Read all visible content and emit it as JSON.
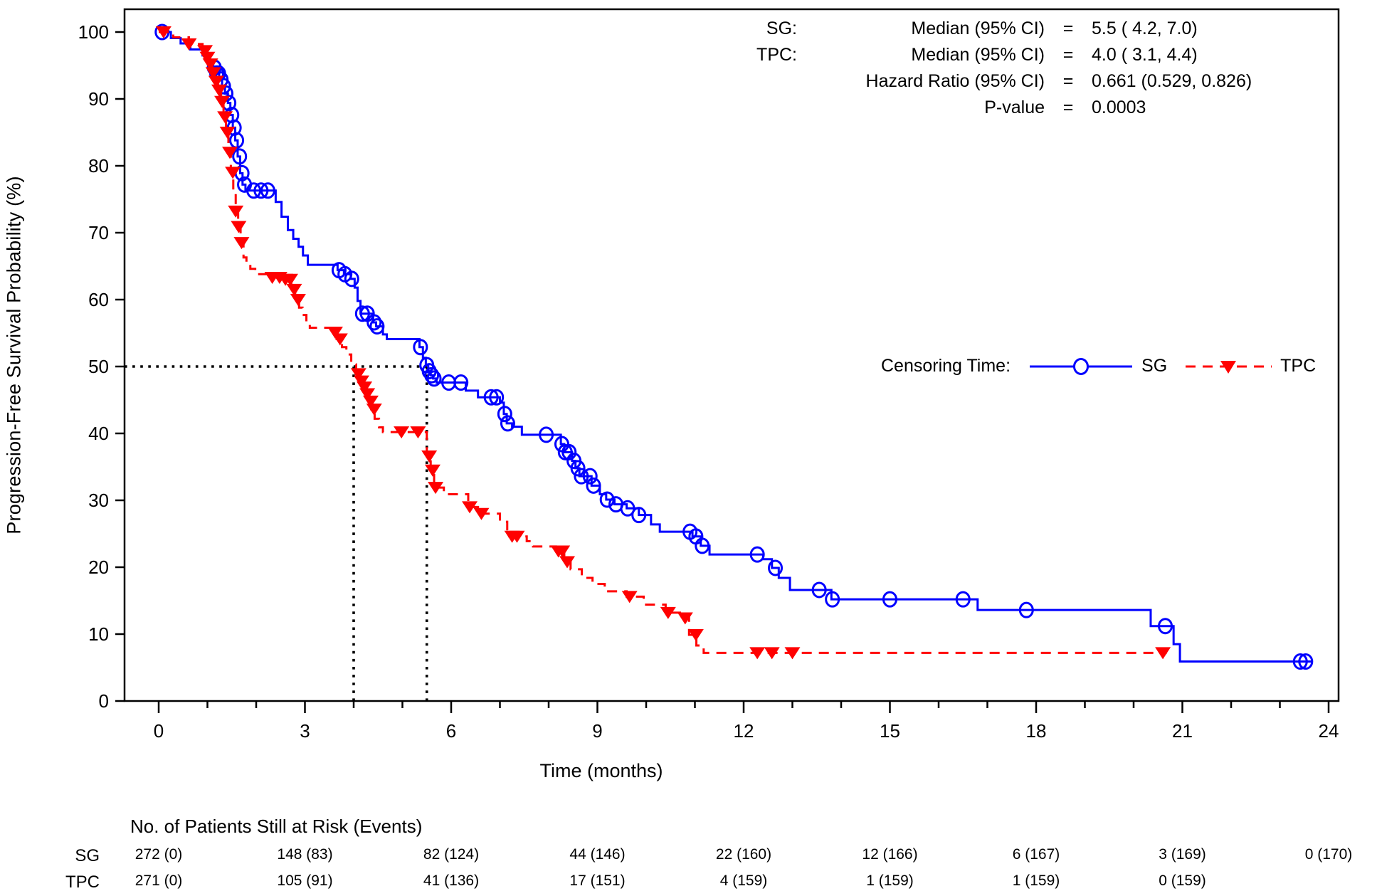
{
  "stats_panel": {
    "rows": [
      {
        "group": "SG:",
        "label": "Median (95% CI)",
        "eq": "=",
        "value": "5.5 ( 4.2, 7.0)"
      },
      {
        "group": "TPC:",
        "label": "Median (95% CI)",
        "eq": "=",
        "value": "4.0 ( 3.1, 4.4)"
      },
      {
        "group": "",
        "label": "Hazard Ratio (95% CI)",
        "eq": "=",
        "value": "0.661 (0.529, 0.826)"
      },
      {
        "group": "",
        "label": "P-value",
        "eq": "=",
        "value": "0.0003"
      }
    ]
  },
  "legend": {
    "title": "Censoring Time:",
    "sg_label": "SG",
    "tpc_label": "TPC"
  },
  "chart_data": {
    "type": "line",
    "subtype": "kaplan-meier-step",
    "title": "",
    "xlabel": "Time (months)",
    "ylabel": "Progression-Free Survival Probability (%)",
    "xlim": [
      0,
      24
    ],
    "ylim": [
      0,
      100
    ],
    "xticks": [
      0,
      3,
      6,
      9,
      12,
      15,
      18,
      21,
      24
    ],
    "yticks": [
      0,
      10,
      20,
      30,
      40,
      50,
      60,
      70,
      80,
      90,
      100
    ],
    "grid": false,
    "legend_position": "right-middle",
    "reference_lines": {
      "y": 50,
      "x_medians": [
        4.0,
        5.5
      ],
      "style": "dotted",
      "color": "#000000"
    },
    "series": [
      {
        "name": "SG",
        "color": "#0000ff",
        "line_style": "solid",
        "marker": "open-circle",
        "end_time": 23.65,
        "steps": [
          [
            0,
            100
          ],
          [
            0.25,
            99.1
          ],
          [
            0.45,
            98.3
          ],
          [
            0.65,
            97.4
          ],
          [
            0.9,
            96.5
          ],
          [
            1.05,
            95.6
          ],
          [
            1.12,
            94.7
          ],
          [
            1.18,
            93.8
          ],
          [
            1.24,
            92.9
          ],
          [
            1.3,
            91.9
          ],
          [
            1.36,
            90.8
          ],
          [
            1.42,
            89.4
          ],
          [
            1.47,
            87.6
          ],
          [
            1.52,
            85.7
          ],
          [
            1.57,
            83.8
          ],
          [
            1.62,
            81.4
          ],
          [
            1.67,
            78.9
          ],
          [
            1.72,
            77.2
          ],
          [
            1.78,
            76.3
          ],
          [
            2.4,
            74.6
          ],
          [
            2.52,
            72.4
          ],
          [
            2.65,
            70.4
          ],
          [
            2.76,
            69.1
          ],
          [
            2.87,
            67.9
          ],
          [
            2.96,
            66.6
          ],
          [
            3.06,
            65.2
          ],
          [
            3.67,
            64.4
          ],
          [
            3.8,
            63.8
          ],
          [
            3.94,
            63.1
          ],
          [
            4.02,
            61.8
          ],
          [
            4.08,
            59.8
          ],
          [
            4.14,
            57.9
          ],
          [
            4.4,
            56.6
          ],
          [
            4.46,
            56.0
          ],
          [
            4.6,
            54.8
          ],
          [
            4.68,
            54.1
          ],
          [
            5.35,
            52.9
          ],
          [
            5.42,
            51.3
          ],
          [
            5.48,
            50.2
          ],
          [
            5.53,
            49.3
          ],
          [
            5.58,
            48.7
          ],
          [
            5.63,
            48.2
          ],
          [
            5.7,
            47.6
          ],
          [
            6.3,
            46.4
          ],
          [
            6.55,
            45.4
          ],
          [
            7.0,
            44.6
          ],
          [
            7.08,
            42.9
          ],
          [
            7.14,
            41.5
          ],
          [
            7.25,
            41.0
          ],
          [
            7.45,
            39.8
          ],
          [
            8.25,
            38.4
          ],
          [
            8.32,
            37.2
          ],
          [
            8.48,
            35.9
          ],
          [
            8.55,
            34.8
          ],
          [
            8.63,
            33.6
          ],
          [
            8.88,
            32.2
          ],
          [
            9.05,
            30.9
          ],
          [
            9.18,
            30.1
          ],
          [
            9.35,
            29.4
          ],
          [
            9.6,
            28.8
          ],
          [
            9.85,
            27.8
          ],
          [
            10.1,
            26.4
          ],
          [
            10.28,
            25.3
          ],
          [
            10.95,
            24.6
          ],
          [
            11.12,
            23.2
          ],
          [
            11.3,
            21.9
          ],
          [
            12.4,
            21.2
          ],
          [
            12.58,
            19.9
          ],
          [
            12.72,
            18.4
          ],
          [
            12.95,
            16.6
          ],
          [
            13.8,
            15.2
          ],
          [
            16.8,
            13.6
          ],
          [
            20.35,
            11.2
          ],
          [
            20.82,
            8.5
          ],
          [
            20.95,
            5.9
          ]
        ],
        "censor_times": [
          0.07,
          1.14,
          1.19,
          1.23,
          1.28,
          1.33,
          1.38,
          1.44,
          1.5,
          1.55,
          1.6,
          1.66,
          1.71,
          1.76,
          1.95,
          2.1,
          2.24,
          3.7,
          3.82,
          3.96,
          4.18,
          4.28,
          4.42,
          4.48,
          5.37,
          5.5,
          5.55,
          5.6,
          5.65,
          5.95,
          6.2,
          6.82,
          6.93,
          7.1,
          7.16,
          7.95,
          8.27,
          8.34,
          8.42,
          8.52,
          8.6,
          8.67,
          8.85,
          8.92,
          9.2,
          9.38,
          9.62,
          9.85,
          10.9,
          11.02,
          11.15,
          12.28,
          12.65,
          13.55,
          13.82,
          15.0,
          16.5,
          17.8,
          20.65,
          23.42,
          23.53
        ]
      },
      {
        "name": "TPC",
        "color": "#ff0000",
        "line_style": "dashed",
        "marker": "filled-triangle-down",
        "end_time": 20.68,
        "steps": [
          [
            0,
            100
          ],
          [
            0.3,
            99.2
          ],
          [
            0.62,
            98.2
          ],
          [
            0.9,
            97.2
          ],
          [
            0.97,
            96.2
          ],
          [
            1.03,
            95.2
          ],
          [
            1.1,
            93.9
          ],
          [
            1.16,
            92.6
          ],
          [
            1.22,
            91.3
          ],
          [
            1.28,
            89.6
          ],
          [
            1.33,
            87.3
          ],
          [
            1.38,
            85.0
          ],
          [
            1.43,
            82.0
          ],
          [
            1.48,
            79.0
          ],
          [
            1.53,
            76.0
          ],
          [
            1.58,
            73.2
          ],
          [
            1.63,
            70.9
          ],
          [
            1.68,
            68.5
          ],
          [
            1.74,
            66.3
          ],
          [
            1.8,
            65.2
          ],
          [
            1.88,
            64.6
          ],
          [
            1.98,
            63.8
          ],
          [
            2.3,
            63.3
          ],
          [
            2.55,
            63.0
          ],
          [
            2.72,
            61.5
          ],
          [
            2.8,
            60.0
          ],
          [
            2.88,
            58.8
          ],
          [
            2.95,
            57.7
          ],
          [
            3.03,
            56.6
          ],
          [
            3.1,
            55.8
          ],
          [
            3.55,
            55.1
          ],
          [
            3.65,
            54.1
          ],
          [
            3.76,
            52.9
          ],
          [
            3.85,
            51.8
          ],
          [
            3.95,
            50.3
          ],
          [
            4.05,
            48.9
          ],
          [
            4.12,
            47.8
          ],
          [
            4.18,
            46.9
          ],
          [
            4.25,
            45.9
          ],
          [
            4.3,
            44.8
          ],
          [
            4.36,
            43.6
          ],
          [
            4.43,
            42.2
          ],
          [
            4.52,
            40.9
          ],
          [
            4.6,
            40.2
          ],
          [
            5.5,
            36.6
          ],
          [
            5.58,
            34.5
          ],
          [
            5.65,
            31.9
          ],
          [
            5.85,
            30.9
          ],
          [
            6.35,
            29.0
          ],
          [
            6.55,
            28.0
          ],
          [
            7.0,
            26.8
          ],
          [
            7.15,
            24.6
          ],
          [
            7.55,
            23.9
          ],
          [
            7.68,
            23.1
          ],
          [
            8.15,
            22.4
          ],
          [
            8.32,
            20.8
          ],
          [
            8.45,
            19.7
          ],
          [
            8.68,
            18.4
          ],
          [
            8.9,
            17.5
          ],
          [
            9.15,
            16.4
          ],
          [
            9.6,
            15.6
          ],
          [
            9.95,
            14.4
          ],
          [
            10.4,
            13.2
          ],
          [
            10.72,
            12.4
          ],
          [
            10.88,
            9.9
          ],
          [
            11.03,
            8.3
          ],
          [
            11.18,
            7.2
          ]
        ],
        "censor_times": [
          0.1,
          0.62,
          0.95,
          1.0,
          1.06,
          1.12,
          1.18,
          1.24,
          1.3,
          1.36,
          1.41,
          1.46,
          1.52,
          1.58,
          1.64,
          1.7,
          2.33,
          2.48,
          2.6,
          2.7,
          2.78,
          2.86,
          3.62,
          3.72,
          4.1,
          4.16,
          4.22,
          4.28,
          4.35,
          4.42,
          4.98,
          5.32,
          5.55,
          5.62,
          5.68,
          6.38,
          6.62,
          7.25,
          7.35,
          8.2,
          8.28,
          8.38,
          9.66,
          10.45,
          10.8,
          11.02,
          12.28,
          12.58,
          13.0,
          20.6
        ]
      }
    ]
  },
  "risk_table": {
    "title": "No. of Patients Still at Risk (Events)",
    "times": [
      0,
      3,
      6,
      9,
      12,
      15,
      18,
      21,
      24
    ],
    "rows": [
      {
        "label": "SG",
        "values": [
          "272 (0)",
          "148 (83)",
          "82 (124)",
          "44 (146)",
          "22 (160)",
          "12 (166)",
          "6 (167)",
          "3 (169)",
          "0 (170)"
        ]
      },
      {
        "label": "TPC",
        "values": [
          "271 (0)",
          "105 (91)",
          "41 (136)",
          "17 (151)",
          "4 (159)",
          "1 (159)",
          "1 (159)",
          "0 (159)",
          ""
        ]
      }
    ]
  }
}
